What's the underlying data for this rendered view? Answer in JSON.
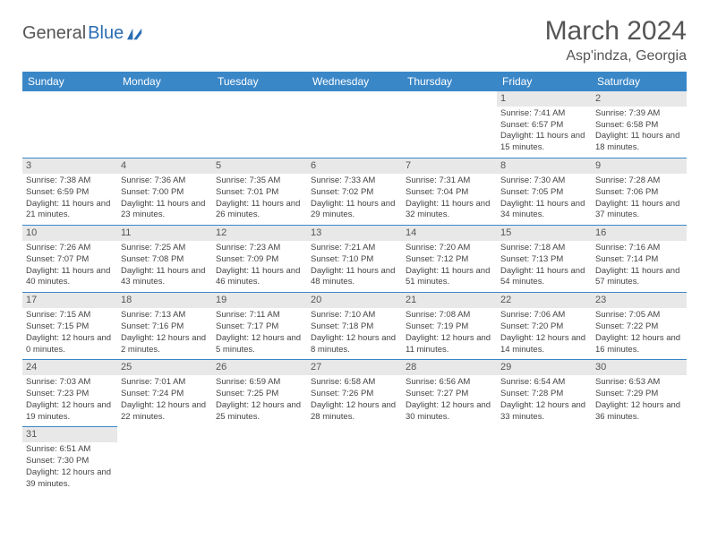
{
  "logo": {
    "text1": "General",
    "text2": "Blue"
  },
  "title": "March 2024",
  "location": "Asp'indza, Georgia",
  "colors": {
    "header_bg": "#3a87c8",
    "header_fg": "#ffffff",
    "daynum_bg": "#e8e8e8",
    "border": "#3a87c8",
    "text": "#444444",
    "title": "#555555",
    "logo_accent": "#2a6db3"
  },
  "dayNames": [
    "Sunday",
    "Monday",
    "Tuesday",
    "Wednesday",
    "Thursday",
    "Friday",
    "Saturday"
  ],
  "weeks": [
    [
      {
        "n": "",
        "sr": "",
        "ss": "",
        "dl": ""
      },
      {
        "n": "",
        "sr": "",
        "ss": "",
        "dl": ""
      },
      {
        "n": "",
        "sr": "",
        "ss": "",
        "dl": ""
      },
      {
        "n": "",
        "sr": "",
        "ss": "",
        "dl": ""
      },
      {
        "n": "",
        "sr": "",
        "ss": "",
        "dl": ""
      },
      {
        "n": "1",
        "sr": "Sunrise: 7:41 AM",
        "ss": "Sunset: 6:57 PM",
        "dl": "Daylight: 11 hours and 15 minutes."
      },
      {
        "n": "2",
        "sr": "Sunrise: 7:39 AM",
        "ss": "Sunset: 6:58 PM",
        "dl": "Daylight: 11 hours and 18 minutes."
      }
    ],
    [
      {
        "n": "3",
        "sr": "Sunrise: 7:38 AM",
        "ss": "Sunset: 6:59 PM",
        "dl": "Daylight: 11 hours and 21 minutes."
      },
      {
        "n": "4",
        "sr": "Sunrise: 7:36 AM",
        "ss": "Sunset: 7:00 PM",
        "dl": "Daylight: 11 hours and 23 minutes."
      },
      {
        "n": "5",
        "sr": "Sunrise: 7:35 AM",
        "ss": "Sunset: 7:01 PM",
        "dl": "Daylight: 11 hours and 26 minutes."
      },
      {
        "n": "6",
        "sr": "Sunrise: 7:33 AM",
        "ss": "Sunset: 7:02 PM",
        "dl": "Daylight: 11 hours and 29 minutes."
      },
      {
        "n": "7",
        "sr": "Sunrise: 7:31 AM",
        "ss": "Sunset: 7:04 PM",
        "dl": "Daylight: 11 hours and 32 minutes."
      },
      {
        "n": "8",
        "sr": "Sunrise: 7:30 AM",
        "ss": "Sunset: 7:05 PM",
        "dl": "Daylight: 11 hours and 34 minutes."
      },
      {
        "n": "9",
        "sr": "Sunrise: 7:28 AM",
        "ss": "Sunset: 7:06 PM",
        "dl": "Daylight: 11 hours and 37 minutes."
      }
    ],
    [
      {
        "n": "10",
        "sr": "Sunrise: 7:26 AM",
        "ss": "Sunset: 7:07 PM",
        "dl": "Daylight: 11 hours and 40 minutes."
      },
      {
        "n": "11",
        "sr": "Sunrise: 7:25 AM",
        "ss": "Sunset: 7:08 PM",
        "dl": "Daylight: 11 hours and 43 minutes."
      },
      {
        "n": "12",
        "sr": "Sunrise: 7:23 AM",
        "ss": "Sunset: 7:09 PM",
        "dl": "Daylight: 11 hours and 46 minutes."
      },
      {
        "n": "13",
        "sr": "Sunrise: 7:21 AM",
        "ss": "Sunset: 7:10 PM",
        "dl": "Daylight: 11 hours and 48 minutes."
      },
      {
        "n": "14",
        "sr": "Sunrise: 7:20 AM",
        "ss": "Sunset: 7:12 PM",
        "dl": "Daylight: 11 hours and 51 minutes."
      },
      {
        "n": "15",
        "sr": "Sunrise: 7:18 AM",
        "ss": "Sunset: 7:13 PM",
        "dl": "Daylight: 11 hours and 54 minutes."
      },
      {
        "n": "16",
        "sr": "Sunrise: 7:16 AM",
        "ss": "Sunset: 7:14 PM",
        "dl": "Daylight: 11 hours and 57 minutes."
      }
    ],
    [
      {
        "n": "17",
        "sr": "Sunrise: 7:15 AM",
        "ss": "Sunset: 7:15 PM",
        "dl": "Daylight: 12 hours and 0 minutes."
      },
      {
        "n": "18",
        "sr": "Sunrise: 7:13 AM",
        "ss": "Sunset: 7:16 PM",
        "dl": "Daylight: 12 hours and 2 minutes."
      },
      {
        "n": "19",
        "sr": "Sunrise: 7:11 AM",
        "ss": "Sunset: 7:17 PM",
        "dl": "Daylight: 12 hours and 5 minutes."
      },
      {
        "n": "20",
        "sr": "Sunrise: 7:10 AM",
        "ss": "Sunset: 7:18 PM",
        "dl": "Daylight: 12 hours and 8 minutes."
      },
      {
        "n": "21",
        "sr": "Sunrise: 7:08 AM",
        "ss": "Sunset: 7:19 PM",
        "dl": "Daylight: 12 hours and 11 minutes."
      },
      {
        "n": "22",
        "sr": "Sunrise: 7:06 AM",
        "ss": "Sunset: 7:20 PM",
        "dl": "Daylight: 12 hours and 14 minutes."
      },
      {
        "n": "23",
        "sr": "Sunrise: 7:05 AM",
        "ss": "Sunset: 7:22 PM",
        "dl": "Daylight: 12 hours and 16 minutes."
      }
    ],
    [
      {
        "n": "24",
        "sr": "Sunrise: 7:03 AM",
        "ss": "Sunset: 7:23 PM",
        "dl": "Daylight: 12 hours and 19 minutes."
      },
      {
        "n": "25",
        "sr": "Sunrise: 7:01 AM",
        "ss": "Sunset: 7:24 PM",
        "dl": "Daylight: 12 hours and 22 minutes."
      },
      {
        "n": "26",
        "sr": "Sunrise: 6:59 AM",
        "ss": "Sunset: 7:25 PM",
        "dl": "Daylight: 12 hours and 25 minutes."
      },
      {
        "n": "27",
        "sr": "Sunrise: 6:58 AM",
        "ss": "Sunset: 7:26 PM",
        "dl": "Daylight: 12 hours and 28 minutes."
      },
      {
        "n": "28",
        "sr": "Sunrise: 6:56 AM",
        "ss": "Sunset: 7:27 PM",
        "dl": "Daylight: 12 hours and 30 minutes."
      },
      {
        "n": "29",
        "sr": "Sunrise: 6:54 AM",
        "ss": "Sunset: 7:28 PM",
        "dl": "Daylight: 12 hours and 33 minutes."
      },
      {
        "n": "30",
        "sr": "Sunrise: 6:53 AM",
        "ss": "Sunset: 7:29 PM",
        "dl": "Daylight: 12 hours and 36 minutes."
      }
    ],
    [
      {
        "n": "31",
        "sr": "Sunrise: 6:51 AM",
        "ss": "Sunset: 7:30 PM",
        "dl": "Daylight: 12 hours and 39 minutes."
      },
      {
        "n": "",
        "sr": "",
        "ss": "",
        "dl": ""
      },
      {
        "n": "",
        "sr": "",
        "ss": "",
        "dl": ""
      },
      {
        "n": "",
        "sr": "",
        "ss": "",
        "dl": ""
      },
      {
        "n": "",
        "sr": "",
        "ss": "",
        "dl": ""
      },
      {
        "n": "",
        "sr": "",
        "ss": "",
        "dl": ""
      },
      {
        "n": "",
        "sr": "",
        "ss": "",
        "dl": ""
      }
    ]
  ]
}
